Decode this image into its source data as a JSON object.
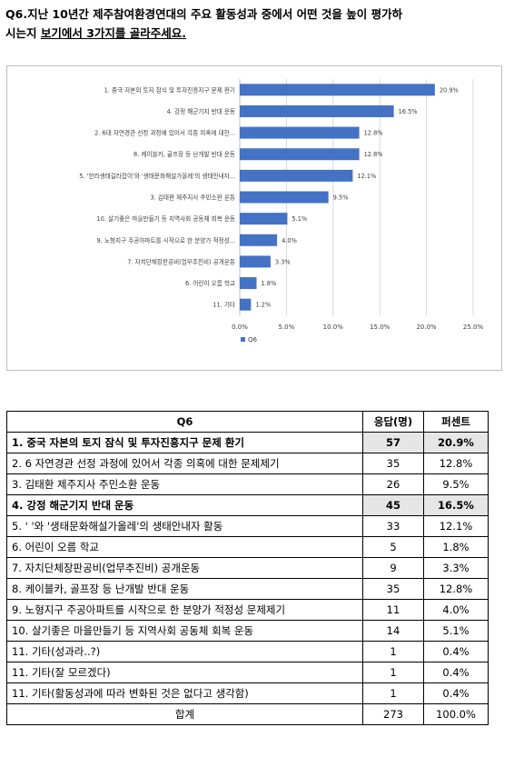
{
  "question": {
    "line1": "Q6.지난 10년간 제주참여환경연대의 주요 활동성과 중에서 어떤 것을 높이 평가하",
    "line2_prefix": "시는지 ",
    "line2_underlined": "보기에서 3가지를 골라주세요."
  },
  "colors": {
    "bar": "#4472c4",
    "grid": "#d9d9d9",
    "highlight": "#e6e6e6"
  },
  "chart_data": {
    "type": "bar",
    "orientation": "horizontal",
    "categories": [
      "1. 중국 자본의 토지 잠식 및 투자진흥지구 문제 환기",
      "4. 강정 해군기지 반대 운동",
      "2. 6대 자연경관 선정 과정에 있어서 각종 의혹에 대한...",
      "8. 케이블카, 골프장 등 난개발 반대 운동",
      "5. '한라생태길라잡이'와 '생태문화해설가올레'의 생태안내자...",
      "3. 김태환 제주지사 주민소환 운동",
      "10. 살기좋은 마을만들기 등 지역사회 공동체 회복 운동",
      "9. 노형지구 주공아파트를 시작으로 한 분양가 적정성...",
      "7. 자치단체장판공비(업무추진비) 공개운동",
      "6. 어린이 오름 학교",
      "11. 기타"
    ],
    "series": [
      {
        "name": "Q6",
        "values": [
          20.9,
          16.5,
          12.8,
          12.8,
          12.1,
          9.5,
          5.1,
          4.0,
          3.3,
          1.8,
          1.2
        ],
        "labels": [
          "20.9%",
          "16.5%",
          "12.8%",
          "12.8%",
          "12.1%",
          "9.5%",
          "5.1%",
          "4.0%",
          "3.3%",
          "1.8%",
          "1.2%"
        ]
      }
    ],
    "xlim": [
      0,
      25
    ],
    "xticks": [
      "0.0%",
      "5.0%",
      "10.0%",
      "15.0%",
      "20.0%",
      "25.0%"
    ],
    "grid": true,
    "legend": "bottom"
  },
  "table": {
    "headers": [
      "Q6",
      "응답(명)",
      "퍼센트"
    ],
    "rows": [
      {
        "label": "1. 중국 자본의 토지 잠식 및 투자진흥지구 문제 환기",
        "count": "57",
        "percent": "20.9%",
        "highlight": true
      },
      {
        "label": "2. 6  자연경관 선정 과정에 있어서 각종 의혹에 대한 문제제기",
        "count": "35",
        "percent": "12.8%",
        "highlight": false
      },
      {
        "label": "3. 김태환 제주지사 주민소환 운동",
        "count": "26",
        "percent": "9.5%",
        "highlight": false
      },
      {
        "label": "4. 강정 해군기지 반대 운동",
        "count": "45",
        "percent": "16.5%",
        "highlight": true
      },
      {
        "label": "5. '                  '와 '생태문화해설가올레'의 생태안내자 활동",
        "count": "33",
        "percent": "12.1%",
        "highlight": false
      },
      {
        "label": "6. 어린이 오름 학교",
        "count": "5",
        "percent": "1.8%",
        "highlight": false
      },
      {
        "label": "7. 자치단체장판공비(업무추진비) 공개운동",
        "count": "9",
        "percent": "3.3%",
        "highlight": false
      },
      {
        "label": "8. 케이블카, 골프장 등 난개발 반대 운동",
        "count": "35",
        "percent": "12.8%",
        "highlight": false
      },
      {
        "label": "9. 노형지구 주공아파트를 시작으로 한 분양가 적정성 문제제기",
        "count": "11",
        "percent": "4.0%",
        "highlight": false
      },
      {
        "label": "10. 살기좋은 마을만들기 등 지역사회 공동체 회복 운동",
        "count": "14",
        "percent": "5.1%",
        "highlight": false
      },
      {
        "label": "11. 기타(성과라..?)",
        "count": "1",
        "percent": "0.4%",
        "highlight": false
      },
      {
        "label": "11. 기타(잘 모르겠다)",
        "count": "1",
        "percent": "0.4%",
        "highlight": false
      },
      {
        "label": "11. 기타(활동성과에 따라 변화된 것은 없다고 생각함)",
        "count": "1",
        "percent": "0.4%",
        "highlight": false
      }
    ],
    "total": {
      "label": "합계",
      "count": "273",
      "percent": "100.0%"
    }
  }
}
